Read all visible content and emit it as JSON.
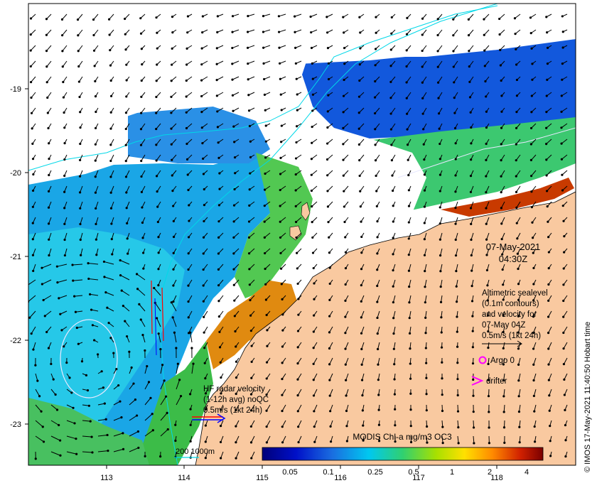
{
  "date_label": "07-May-2021",
  "time_label": "04:30Z",
  "altimetry_legend": [
    "Altimetric sealevel",
    "(0.1m contours)",
    "and velocity for",
    "07-May 04Z",
    "0.5m/s (1kt 24h)"
  ],
  "argo_label": "Argo 0",
  "drifter_label": "drifter",
  "hf_radar_legend": [
    "HF radar velocity",
    "(1-12h avg) noQC",
    "0.5m/s (1kt 24h)"
  ],
  "bathymetry_label": "200  1000m",
  "colorbar": {
    "title": "MODIS Chl-a mg/m3 OC3",
    "ticks": [
      "0.05",
      "0.1",
      "0.25",
      "0.5",
      "1",
      "2",
      "4"
    ]
  },
  "x_ticks": [
    "113",
    "114",
    "115",
    "116",
    "117",
    "118"
  ],
  "y_ticks": [
    "-19",
    "-20",
    "-21",
    "-22",
    "-23"
  ],
  "credit": "© IMOS 17-May-2021 11:40:50 Hobart time",
  "colors": {
    "land": "#f9c9a0",
    "background_white": "#ffffff",
    "current_arrow": "#000000",
    "hf_radar_red": "#ff0000",
    "hf_radar_blue": "#0000ff",
    "argo_marker": "#ff00ff",
    "contour": "#e8e8ff",
    "isobath": "#00d8e8"
  }
}
